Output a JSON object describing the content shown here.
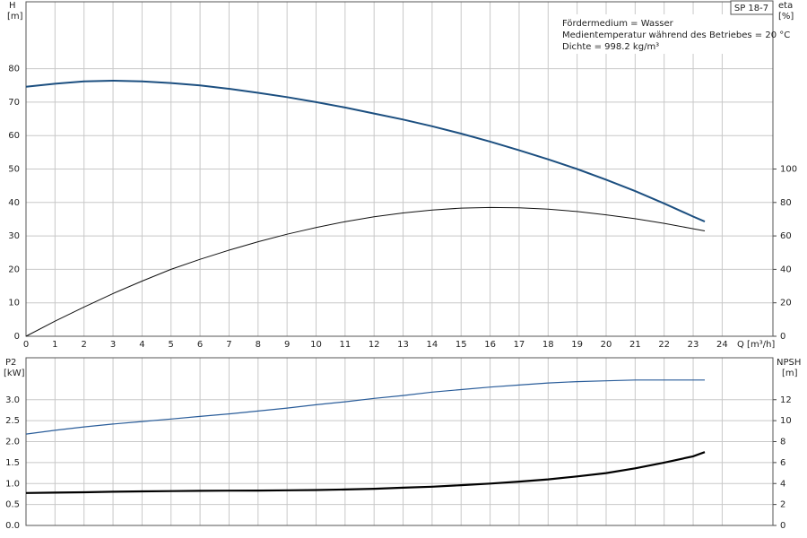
{
  "chart_data": [
    {
      "type": "line",
      "title": "SP 18-7",
      "annotations": [
        "Fördermedium = Wasser",
        "Medientemperatur während des Betriebes = 20 °C",
        "Dichte = 998.2 kg/m³"
      ],
      "y_label": "H",
      "y_unit": "[m]",
      "y2_label": "eta",
      "y2_unit": "[%]",
      "x_label": "Q [m³/h]",
      "x": [
        0,
        1,
        2,
        3,
        4,
        5,
        6,
        7,
        8,
        9,
        10,
        11,
        12,
        13,
        14,
        15,
        16,
        17,
        18,
        19,
        20,
        21,
        22,
        23,
        23.4
      ],
      "xlim": [
        0,
        25.75
      ],
      "xticks": [
        0,
        1,
        2,
        3,
        4,
        5,
        6,
        7,
        8,
        9,
        10,
        11,
        12,
        13,
        14,
        15,
        16,
        17,
        18,
        19,
        20,
        21,
        22,
        23,
        24
      ],
      "ylim": [
        0,
        100
      ],
      "yticks": [
        0,
        10,
        20,
        30,
        40,
        50,
        60,
        70,
        80
      ],
      "y2lim": [
        0,
        200
      ],
      "y2ticks": [
        0,
        20,
        40,
        60,
        80,
        100
      ],
      "grid": true,
      "series": [
        {
          "name": "H",
          "color": "#1c4f80",
          "values": [
            74.6,
            75.5,
            76.2,
            76.4,
            76.2,
            75.7,
            75,
            74,
            72.8,
            71.5,
            70,
            68.4,
            66.6,
            64.8,
            62.8,
            60.6,
            58.2,
            55.6,
            52.9,
            50,
            46.8,
            43.4,
            39.7,
            35.8,
            34.3
          ]
        },
        {
          "name": "eta",
          "color": "#111111",
          "axis": "y2",
          "values": [
            0,
            9,
            17.5,
            25.5,
            33,
            40,
            46,
            51.5,
            56.5,
            61,
            65,
            68.5,
            71.5,
            73.7,
            75.5,
            76.6,
            77,
            76.8,
            76,
            74.6,
            72.6,
            70.3,
            67.5,
            64.3,
            63
          ]
        }
      ]
    },
    {
      "type": "line",
      "y_label": "P2",
      "y_unit": "[kW]",
      "y2_label": "NPSH",
      "y2_unit": "[m]",
      "x": [
        0,
        1,
        2,
        3,
        4,
        5,
        6,
        7,
        8,
        9,
        10,
        11,
        12,
        13,
        14,
        15,
        16,
        17,
        18,
        19,
        20,
        21,
        22,
        23,
        23.4
      ],
      "xlim": [
        0,
        25.75
      ],
      "xticks": [
        0,
        1,
        2,
        3,
        4,
        5,
        6,
        7,
        8,
        9,
        10,
        11,
        12,
        13,
        14,
        15,
        16,
        17,
        18,
        19,
        20,
        21,
        22,
        23,
        24
      ],
      "ylim": [
        0,
        4
      ],
      "yticks": [
        {
          "value": 0,
          "label": "0.0"
        },
        0.5,
        {
          "value": 1,
          "label": "1.0"
        },
        1.5,
        {
          "value": 2,
          "label": "2.0"
        },
        2.5,
        {
          "value": 3,
          "label": "3.0"
        }
      ],
      "y2lim": [
        0,
        16
      ],
      "y2ticks": [
        0,
        2,
        4,
        6,
        8,
        10,
        12
      ],
      "grid": true,
      "series": [
        {
          "name": "P2",
          "color": "#2a5d9a",
          "values": [
            2.18,
            2.27,
            2.35,
            2.42,
            2.48,
            2.54,
            2.6,
            2.66,
            2.73,
            2.8,
            2.88,
            2.95,
            3.03,
            3.1,
            3.18,
            3.24,
            3.3,
            3.35,
            3.4,
            3.43,
            3.45,
            3.47,
            3.47,
            3.47,
            3.47
          ]
        },
        {
          "name": "NPSH",
          "color": "#000000",
          "axis": "y2",
          "values": [
            3.1,
            3.13,
            3.17,
            3.22,
            3.25,
            3.28,
            3.3,
            3.32,
            3.33,
            3.35,
            3.38,
            3.43,
            3.5,
            3.6,
            3.7,
            3.84,
            4.0,
            4.18,
            4.4,
            4.68,
            5.0,
            5.45,
            6.0,
            6.6,
            7.0
          ]
        }
      ]
    }
  ]
}
